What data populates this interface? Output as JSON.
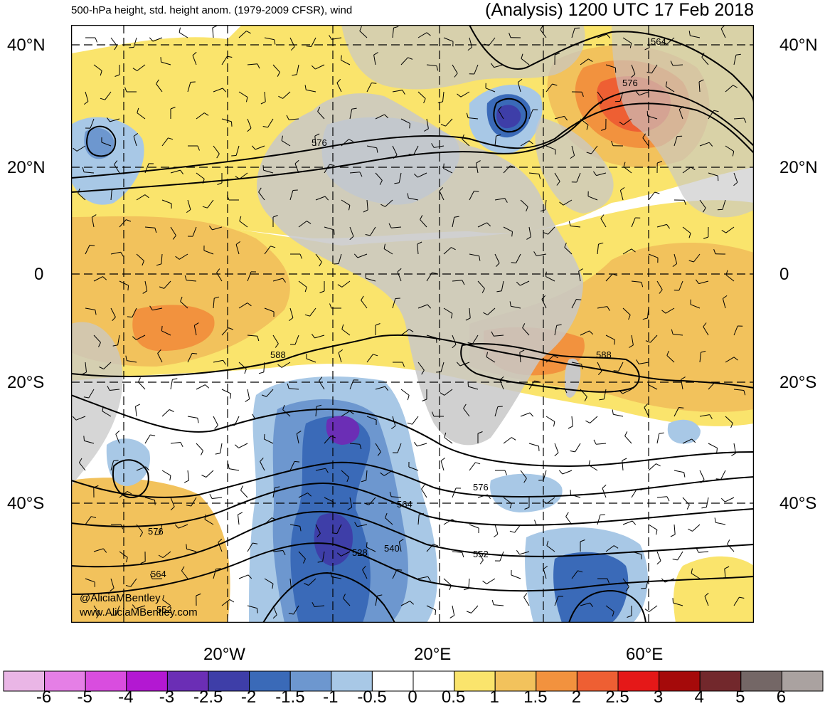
{
  "header": {
    "left_title": "500-hPa height, std. height anom. (1979-2009 CFSR), wind",
    "right_title": "(Analysis) 1200 UTC 17 Feb 2018"
  },
  "lat_labels": [
    "40°N",
    "20°N",
    "0",
    "20°S",
    "40°S"
  ],
  "lon_labels": [
    "20°W",
    "20°E",
    "60°E"
  ],
  "contour_labels": [
    "564",
    "576",
    "576",
    "588",
    "588",
    "576",
    "564",
    "552",
    "540",
    "528",
    "576",
    "564",
    "552"
  ],
  "credits": [
    "@AliciaMBentley",
    "www.AliciaMBentley.com"
  ],
  "colorbar": {
    "ticks": [
      "-6",
      "-5",
      "-4",
      "-3",
      "-2.5",
      "-2",
      "-1.5",
      "-1",
      "-0.5",
      "0",
      "0.5",
      "1",
      "1.5",
      "2",
      "2.5",
      "3",
      "4",
      "5",
      "6"
    ],
    "colors": [
      "#eab6e6",
      "#e57fe6",
      "#d94ddf",
      "#b318d2",
      "#6b2eb5",
      "#3e3ea8",
      "#3a6ab8",
      "#6d97cf",
      "#a8c8e6",
      "#ffffff",
      "#ffffff",
      "#fae46c",
      "#f2c25c",
      "#f2923e",
      "#ee5f33",
      "#e51818",
      "#a50a0a",
      "#72282c",
      "#746766",
      "#aaa2a0"
    ]
  },
  "colors": {
    "land": "#c8c8c8",
    "contour": "#000000",
    "grid": "#000000"
  }
}
